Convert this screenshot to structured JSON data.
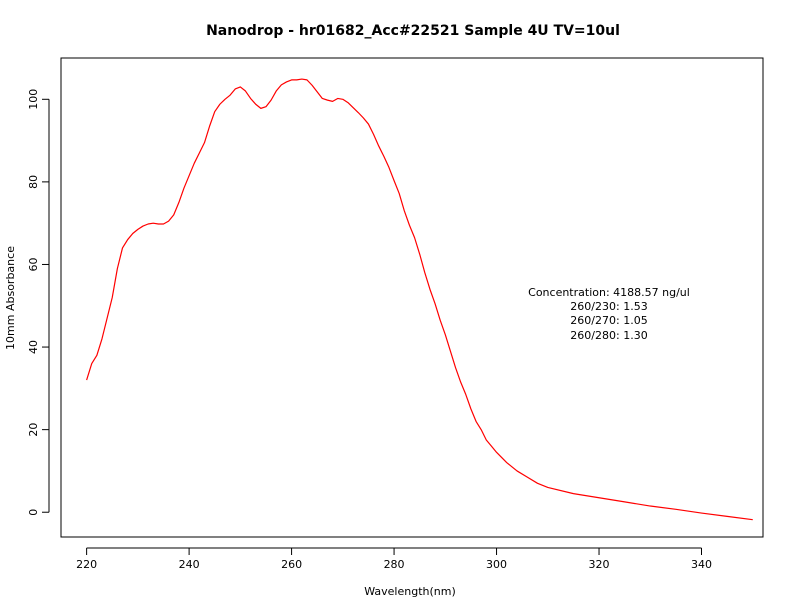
{
  "chart_data": {
    "type": "line",
    "title": "Nanodrop - hr01682_Acc#22521 Sample 4U TV=10ul",
    "xlabel": "Wavelength(nm)",
    "ylabel": "10mm Absorbance",
    "xlim": [
      215,
      352
    ],
    "ylim": [
      -6,
      110
    ],
    "xticks": [
      220,
      240,
      260,
      280,
      300,
      320,
      340
    ],
    "yticks": [
      0,
      20,
      40,
      60,
      80,
      100
    ],
    "grid": false,
    "series": [
      {
        "color": "#ff0000",
        "x": [
          220,
          221,
          222,
          223,
          224,
          225,
          226,
          227,
          228,
          229,
          230,
          231,
          232,
          233,
          234,
          235,
          236,
          237,
          238,
          239,
          240,
          241,
          242,
          243,
          244,
          245,
          246,
          247,
          248,
          249,
          250,
          251,
          252,
          253,
          254,
          255,
          256,
          257,
          258,
          259,
          260,
          261,
          262,
          263,
          264,
          265,
          266,
          267,
          268,
          269,
          270,
          271,
          272,
          273,
          274,
          275,
          276,
          277,
          278,
          279,
          280,
          281,
          282,
          283,
          284,
          285,
          286,
          287,
          288,
          289,
          290,
          291,
          292,
          293,
          294,
          295,
          296,
          297,
          298,
          299,
          300,
          302,
          304,
          306,
          308,
          310,
          315,
          320,
          325,
          330,
          335,
          340,
          345,
          350
        ],
        "y": [
          32,
          36,
          38,
          42,
          47,
          52,
          59,
          64,
          66,
          67.5,
          68.5,
          69.3,
          69.8,
          70,
          69.8,
          69.8,
          70.5,
          72,
          75,
          78.5,
          81.5,
          84.5,
          87,
          89.5,
          93.5,
          97,
          98.8,
          100,
          101,
          102.5,
          103,
          102,
          100.2,
          98.8,
          97.8,
          98.2,
          99.8,
          102,
          103.5,
          104.2,
          104.7,
          104.7,
          104.9,
          104.7,
          103.4,
          101.8,
          100.2,
          99.8,
          99.5,
          100.2,
          100,
          99.2,
          98,
          96.8,
          95.5,
          94,
          91.5,
          88.7,
          86.2,
          83.5,
          80.3,
          77.2,
          73,
          69.5,
          66.5,
          62.5,
          58,
          54,
          50.5,
          46.5,
          43,
          39,
          35,
          31.5,
          28.5,
          25,
          22,
          20,
          17.5,
          16,
          14.5,
          12,
          10,
          8.5,
          7,
          6,
          4.5,
          3.5,
          2.5,
          1.5,
          0.7,
          -0.2,
          -1,
          -1.8
        ]
      }
    ],
    "annotations": [
      "Concentration: 4188.57 ng/ul",
      "260/230: 1.53",
      "260/270: 1.05",
      "260/280: 1.30"
    ]
  }
}
